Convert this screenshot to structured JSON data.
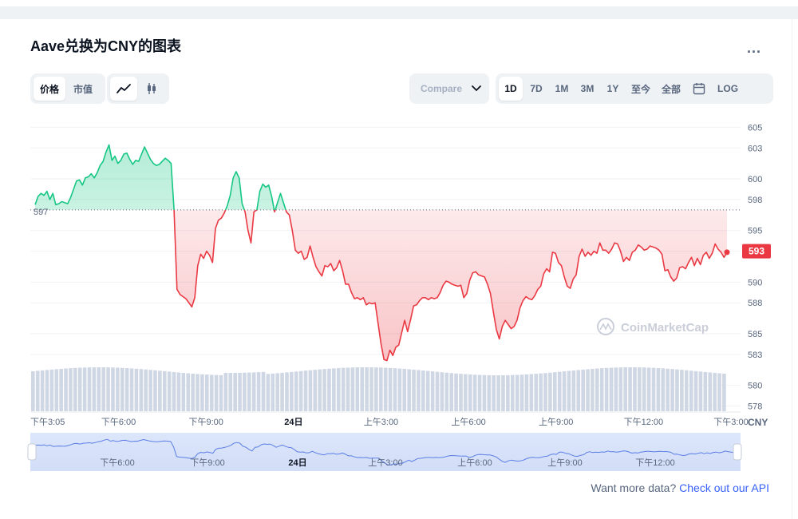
{
  "header": {
    "title": "Aave兑换为CNY的图表",
    "more_label": "..."
  },
  "toggles": {
    "metric": [
      {
        "label": "价格",
        "active": true
      },
      {
        "label": "市值",
        "active": false
      }
    ],
    "chart_style": [
      {
        "icon": "line-chart-icon",
        "active": true
      },
      {
        "icon": "candlestick-icon",
        "active": false
      }
    ]
  },
  "compare": {
    "label": "Compare",
    "icon": "chevron-down-icon"
  },
  "ranges": [
    {
      "label": "1D",
      "active": true
    },
    {
      "label": "7D"
    },
    {
      "label": "1M"
    },
    {
      "label": "3M"
    },
    {
      "label": "1Y"
    },
    {
      "label": "至今"
    },
    {
      "label": "全部"
    },
    {
      "label": "",
      "icon": "calendar-icon"
    },
    {
      "label": "LOG"
    }
  ],
  "watermark": "CoinMarketCap",
  "footer": {
    "text": "Want more data? ",
    "link": "Check out our API"
  },
  "colors": {
    "up": "#16c784",
    "down": "#ea3943",
    "accent": "#3861fb",
    "volume": "#cfd6e4",
    "navigator": "#5b7ee5"
  },
  "chart_data": {
    "type": "line",
    "currency": "CNY",
    "reference_value": 597,
    "reference_label": "597",
    "current_value": 593,
    "current_label": "593",
    "y_ticks": [
      605,
      603,
      600,
      598,
      595,
      593,
      590,
      588,
      585,
      583,
      580,
      578
    ],
    "ylim": [
      577.5,
      606.5
    ],
    "x_labels": [
      {
        "label": "下午3:05",
        "t": 0,
        "bold": false
      },
      {
        "label": "下午6:00",
        "t": 175,
        "bold": false
      },
      {
        "label": "下午9:00",
        "t": 355,
        "bold": false
      },
      {
        "label": "24日",
        "t": 535,
        "bold": true
      },
      {
        "label": "上午3:00",
        "t": 715,
        "bold": false
      },
      {
        "label": "上午6:00",
        "t": 895,
        "bold": false
      },
      {
        "label": "上午9:00",
        "t": 1075,
        "bold": false
      },
      {
        "label": "下午12:00",
        "t": 1255,
        "bold": false
      },
      {
        "label": "下午3:00",
        "t": 1435,
        "bold": false
      }
    ],
    "navigator_labels": [
      "下午6:00",
      "下午9:00",
      "24日",
      "上午3:00",
      "上午6:00",
      "上午9:00",
      "下午12:00"
    ],
    "series": [
      {
        "values": [
          597.5,
          598.3,
          598.6,
          598.4,
          598.8,
          598.0,
          598.6,
          597.5,
          597.6,
          597.8,
          597.7,
          597.6,
          598.2,
          599.0,
          599.8,
          599.9,
          599.4,
          600.1,
          600.2,
          600.5,
          600.1,
          600.6,
          601.3,
          601.7,
          602.6,
          603.3,
          601.8,
          602.2,
          601.5,
          601.8,
          602.4,
          602.5,
          601.9,
          601.4,
          601.8,
          601.7,
          602.4,
          603.1,
          602.5,
          601.9,
          601.5,
          601.3,
          601.4,
          601.7,
          602.0,
          601.8,
          601.5,
          597.0,
          589.3,
          588.8,
          588.6,
          588.4,
          588.0,
          587.6,
          588.5,
          591.6,
          592.7,
          592.3,
          593.0,
          592.6,
          591.9,
          595.2,
          596.0,
          596.2,
          596.7,
          597.4,
          598.4,
          600.1,
          600.7,
          600.1,
          597.6,
          596.8,
          595.0,
          593.8,
          596.8,
          597.0,
          598.8,
          599.5,
          599.2,
          599.4,
          598.3,
          596.8,
          597.7,
          598.6,
          597.7,
          596.8,
          596.5,
          595.0,
          593.1,
          592.8,
          593.0,
          592.2,
          592.4,
          593.5,
          592.4,
          591.5,
          591.0,
          590.6,
          591.6,
          591.5,
          591.8,
          591.1,
          591.4,
          592.1,
          591.1,
          589.8,
          589.8,
          589.0,
          588.4,
          588.5,
          588.3,
          588.5,
          587.8,
          588.0,
          587.9,
          588.0,
          586.0,
          584.0,
          582.5,
          582.4,
          583.4,
          582.9,
          583.7,
          583.9,
          585.1,
          586.3,
          585.2,
          586.4,
          587.7,
          587.8,
          588.2,
          588.5,
          588.5,
          588.3,
          588.5,
          588.4,
          588.5,
          589.0,
          589.7,
          590.1,
          590.0,
          589.8,
          589.7,
          589.6,
          589.7,
          588.5,
          588.9,
          590.2,
          590.9,
          591.0,
          590.7,
          590.6,
          590.5,
          589.8,
          588.9,
          587.1,
          585.4,
          584.5,
          585.7,
          586.3,
          585.9,
          585.5,
          585.7,
          586.3,
          587.5,
          588.2,
          588.6,
          588.4,
          588.3,
          588.7,
          589.3,
          589.6,
          590.8,
          591.3,
          591.0,
          592.9,
          592.8,
          591.9,
          591.6,
          590.5,
          589.6,
          589.4,
          590.3,
          590.7,
          592.5,
          593.2,
          592.5,
          592.9,
          592.6,
          593.0,
          592.8,
          593.8,
          593.1,
          593.1,
          592.8,
          593.2,
          593.8,
          593.7,
          593.0,
          592.0,
          592.4,
          592.1,
          592.9,
          593.1,
          593.6,
          593.4,
          593.1,
          593.2,
          593.5,
          593.4,
          593.3,
          593.1,
          592.7,
          591.1,
          591.2,
          590.5,
          590.1,
          590.4,
          591.4,
          591.5,
          591.3,
          591.9,
          592.4,
          591.6,
          592.3,
          591.7,
          592.6,
          592.9,
          592.3,
          592.8,
          593.7,
          593.2,
          592.9,
          592.4,
          592.9
        ]
      }
    ]
  }
}
